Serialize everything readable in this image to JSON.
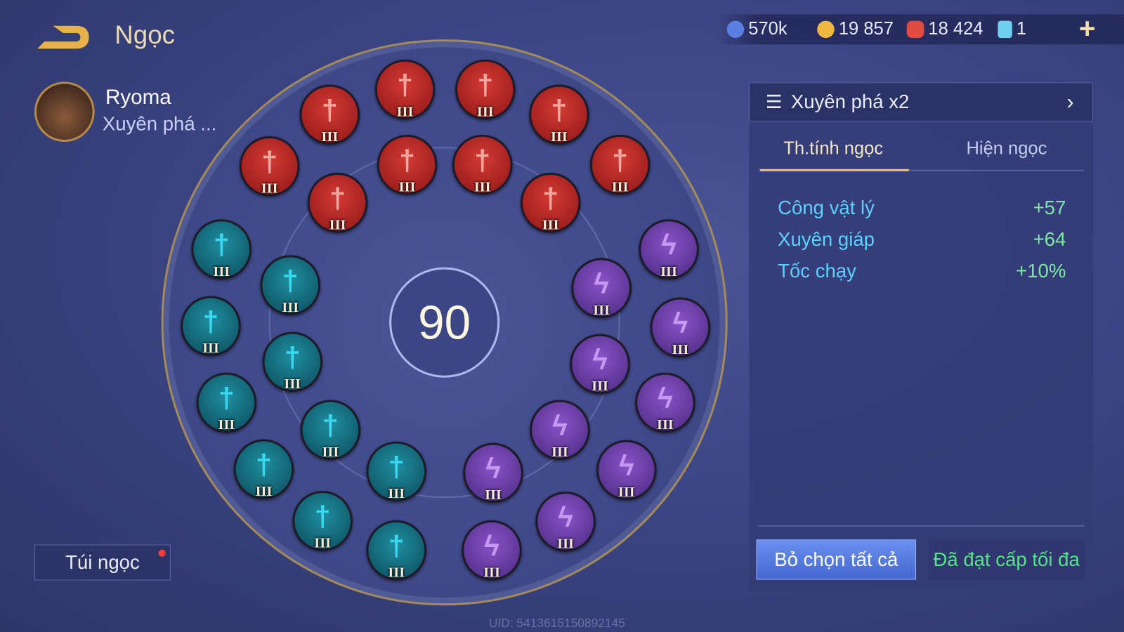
{
  "header": {
    "title": "Ngọc",
    "back_icon": "back-arrow-icon"
  },
  "resources": [
    {
      "icon": "blue-coin-icon",
      "value": "570k",
      "color": "#5b7fe0"
    },
    {
      "icon": "gold-coin-icon",
      "value": "19 857",
      "color": "#f0b840"
    },
    {
      "icon": "red-gem-icon",
      "value": "18 424",
      "color": "#e04a40"
    },
    {
      "icon": "voucher-icon",
      "value": "1",
      "color": "#6fd0f0"
    }
  ],
  "add_icon": "plus-icon",
  "hero": {
    "name": "Ryoma",
    "set": "Xuyên phá ..."
  },
  "center_level": "90",
  "gems": [
    {
      "type": "red",
      "level": "III"
    },
    {
      "type": "red",
      "level": "III"
    },
    {
      "type": "red",
      "level": "III"
    },
    {
      "type": "red",
      "level": "III"
    },
    {
      "type": "red",
      "level": "III"
    },
    {
      "type": "red",
      "level": "III"
    },
    {
      "type": "red",
      "level": "III"
    },
    {
      "type": "red",
      "level": "III"
    },
    {
      "type": "red",
      "level": "III"
    },
    {
      "type": "red",
      "level": "III"
    },
    {
      "type": "teal",
      "level": "III"
    },
    {
      "type": "teal",
      "level": "III"
    },
    {
      "type": "teal",
      "level": "III"
    },
    {
      "type": "teal",
      "level": "III"
    },
    {
      "type": "teal",
      "level": "III"
    },
    {
      "type": "teal",
      "level": "III"
    },
    {
      "type": "teal",
      "level": "III"
    },
    {
      "type": "teal",
      "level": "III"
    },
    {
      "type": "teal",
      "level": "III"
    },
    {
      "type": "teal",
      "level": "III"
    },
    {
      "type": "purple",
      "level": "III"
    },
    {
      "type": "purple",
      "level": "III"
    },
    {
      "type": "purple",
      "level": "III"
    },
    {
      "type": "purple",
      "level": "III"
    },
    {
      "type": "purple",
      "level": "III"
    },
    {
      "type": "purple",
      "level": "III"
    },
    {
      "type": "purple",
      "level": "III"
    },
    {
      "type": "purple",
      "level": "III"
    },
    {
      "type": "purple",
      "level": "III"
    },
    {
      "type": "purple",
      "level": "III"
    }
  ],
  "set_selector": {
    "label": "Xuyên phá x2"
  },
  "tabs": [
    {
      "label": "Th.tính ngọc",
      "active": true
    },
    {
      "label": "Hiện ngọc",
      "active": false
    }
  ],
  "stats": [
    {
      "name": "Công vật lý",
      "value": "+57"
    },
    {
      "name": "Xuyên giáp",
      "value": "+64"
    },
    {
      "name": "Tốc chạy",
      "value": "+10%"
    }
  ],
  "buttons": {
    "deselect": "Bỏ chọn tất cả",
    "maxed": "Đã đạt cấp tối đa",
    "bag": "Túi ngọc"
  },
  "uid": "UID: 5413615150892145"
}
